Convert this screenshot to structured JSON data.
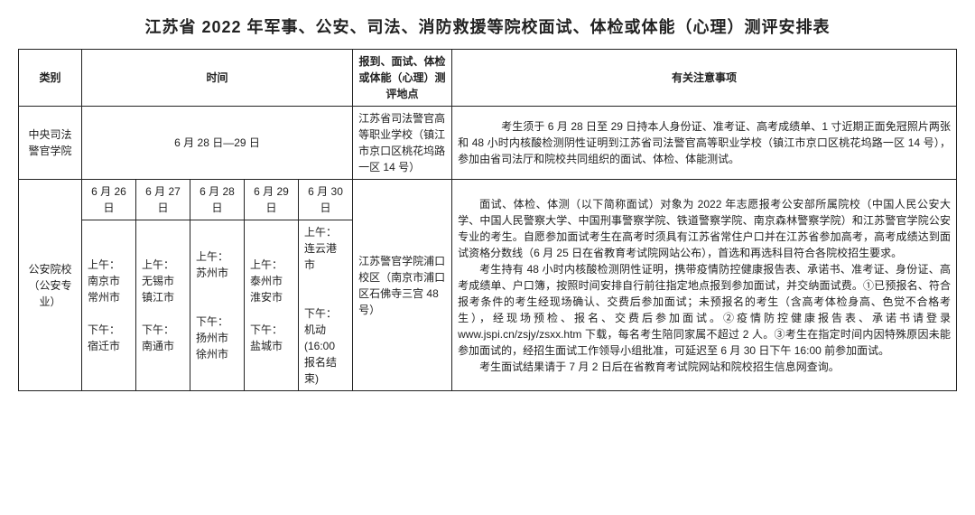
{
  "title": "江苏省 2022 年军事、公安、司法、消防救援等院校面试、体检或体能（心理）测评安排表",
  "headers": {
    "category": "类别",
    "time": "时间",
    "location": "报到、面试、体检或体能（心理）测评地点",
    "notes": "有关注意事项"
  },
  "row1": {
    "category": "中央司法警官学院",
    "time": "6 月 28 日—29 日",
    "location": "江苏省司法警官高等职业学校（镇江市京口区桃花坞路一区 14 号）",
    "notes": "　　考生须于 6 月 28 日至 29 日持本人身份证、准考证、高考成绩单、1 寸近期正面免冠照片两张和 48 小时内核酸检测阴性证明到江苏省司法警官高等职业学校（镇江市京口区桃花坞路一区 14 号），参加由省司法厅和院校共同组织的面试、体检、体能测试。"
  },
  "row2": {
    "category": "公安院校（公安专业）",
    "days": {
      "d1": "6 月 26 日",
      "d2": "6 月 27 日",
      "d3": "6 月 28 日",
      "d4": "6 月 29 日",
      "d5": "6 月 30 日"
    },
    "sched": {
      "s1": "上午：\n南京市\n常州市\n\n下午：\n宿迁市",
      "s2": "上午：\n无锡市\n镇江市\n\n下午：\n南通市",
      "s3": "上午：\n苏州市\n\n\n下午：\n扬州市\n徐州市",
      "s4": "上午：\n泰州市\n淮安市\n\n下午：\n盐城市",
      "s5": "上午：\n连云港市\n\n\n下午：\n机动 (16:00 报名结束)"
    },
    "location": "江苏警官学院浦口校区（南京市浦口区石佛寺三宫 48 号）",
    "notes_p1": "面试、体检、体测（以下简称面试）对象为 2022 年志愿报考公安部所属院校（中国人民公安大学、中国人民警察大学、中国刑事警察学院、铁道警察学院、南京森林警察学院）和江苏警官学院公安专业的考生。自愿参加面试考生在高考时须具有江苏省常住户口并在江苏省参加高考，高考成绩达到面试资格分数线（6 月 25 日在省教育考试院网站公布），首选和再选科目符合各院校招生要求。",
    "notes_p2": "考生持有 48 小时内核酸检测阴性证明，携带疫情防控健康报告表、承诺书、准考证、身份证、高考成绩单、户口簿，按照时间安排自行前往指定地点报到参加面试，并交纳面试费。①已预报名、符合报考条件的考生经现场确认、交费后参加面试；未预报名的考生（含高考体检身高、色觉不合格考生），经现场预检、报名、交费后参加面试。②疫情防控健康报告表、承诺书请登录 www.jspi.cn/zsjy/zsxx.htm 下载，每名考生陪同家属不超过 2 人。③考生在指定时间内因特殊原因未能参加面试的，经招生面试工作领导小组批准，可延迟至 6 月 30 日下午 16:00 前参加面试。",
    "notes_p3": "考生面试结果请于 7 月 2 日后在省教育考试院网站和院校招生信息网查询。"
  }
}
